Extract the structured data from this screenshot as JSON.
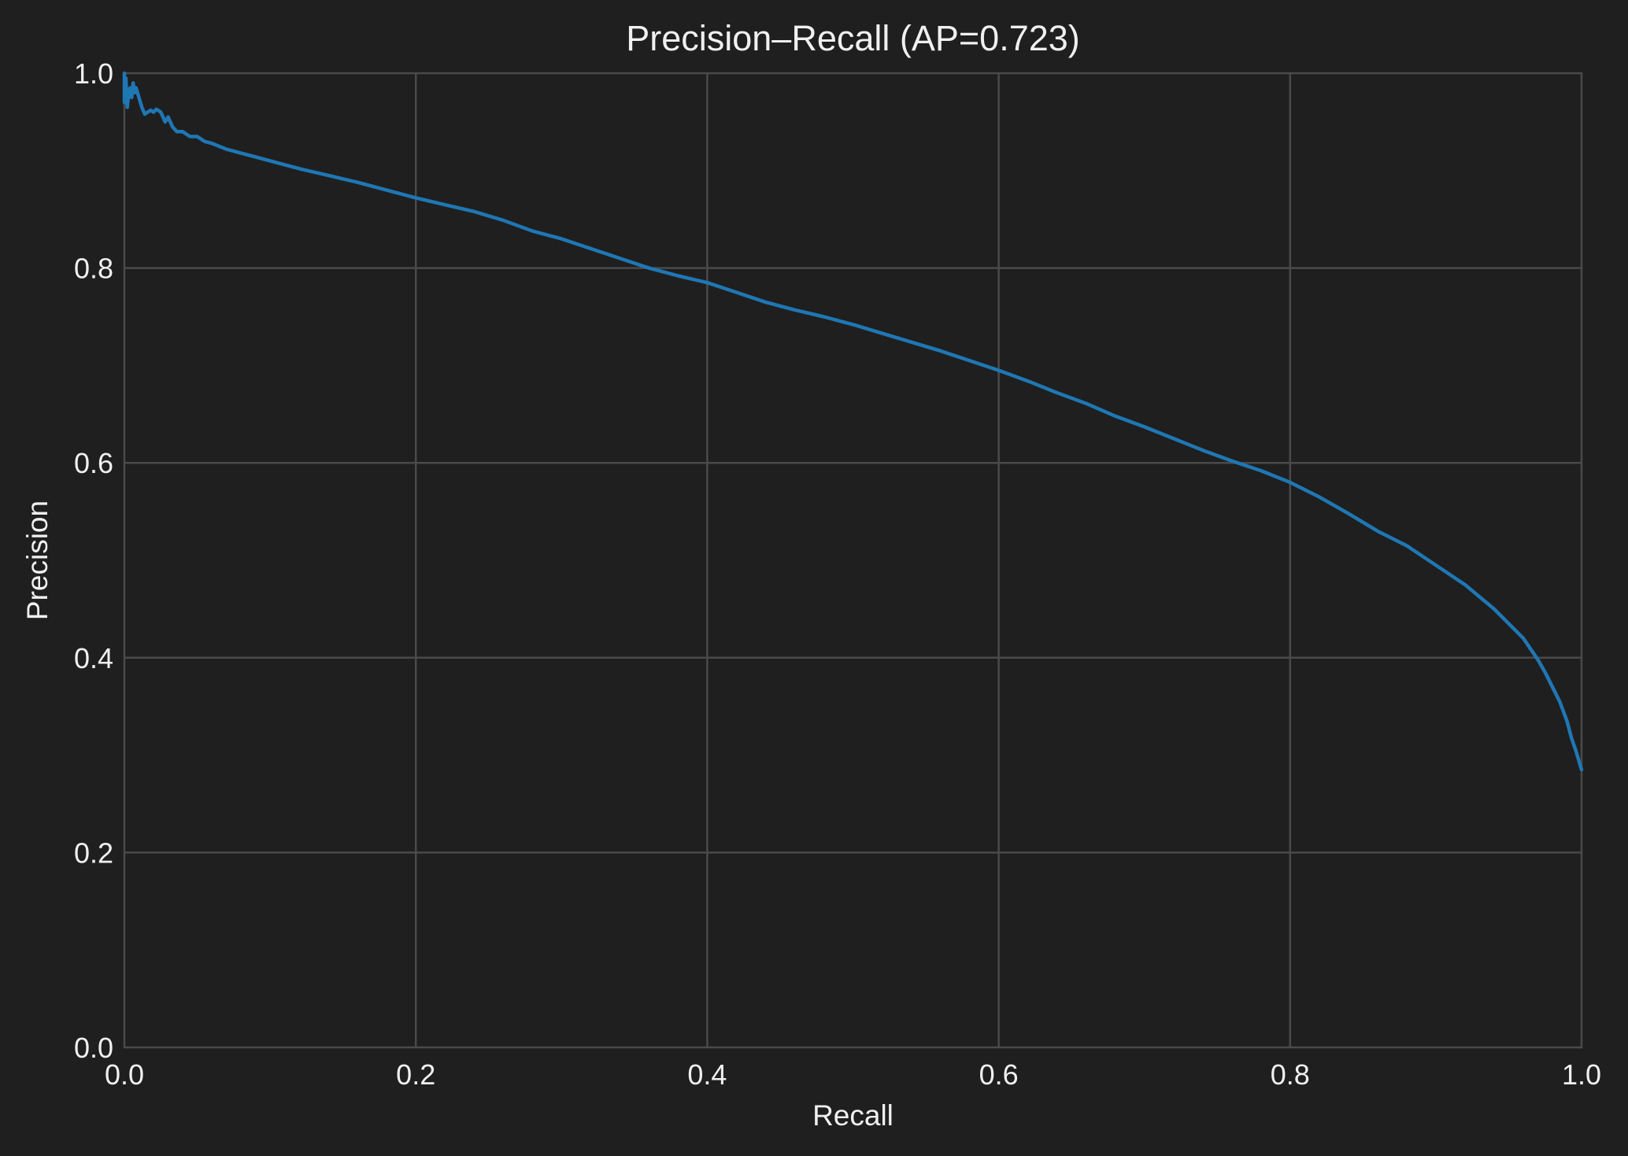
{
  "chart_data": {
    "type": "line",
    "title": "Precision–Recall (AP=0.723)",
    "xlabel": "Recall",
    "ylabel": "Precision",
    "xlim": [
      0.0,
      1.0
    ],
    "ylim": [
      0.0,
      1.0
    ],
    "grid": true,
    "xticks": [
      "0.0",
      "0.2",
      "0.4",
      "0.6",
      "0.8",
      "1.0"
    ],
    "yticks": [
      "0.0",
      "0.2",
      "0.4",
      "0.6",
      "0.8",
      "1.0"
    ],
    "background_color": "#1f1f1f",
    "grid_color": "#4a4a4a",
    "text_color": "#f0f0f0",
    "series": [
      {
        "color": "#1f77b4",
        "x": [
          0.0,
          0.0,
          0.001,
          0.002,
          0.003,
          0.004,
          0.005,
          0.006,
          0.007,
          0.008,
          0.01,
          0.012,
          0.014,
          0.016,
          0.018,
          0.02,
          0.022,
          0.025,
          0.028,
          0.03,
          0.033,
          0.036,
          0.04,
          0.045,
          0.05,
          0.055,
          0.06,
          0.07,
          0.08,
          0.09,
          0.1,
          0.12,
          0.14,
          0.16,
          0.18,
          0.2,
          0.22,
          0.24,
          0.26,
          0.28,
          0.3,
          0.32,
          0.34,
          0.36,
          0.38,
          0.4,
          0.42,
          0.44,
          0.46,
          0.48,
          0.5,
          0.52,
          0.54,
          0.56,
          0.58,
          0.6,
          0.62,
          0.64,
          0.66,
          0.68,
          0.7,
          0.72,
          0.74,
          0.76,
          0.78,
          0.8,
          0.82,
          0.84,
          0.86,
          0.88,
          0.9,
          0.92,
          0.94,
          0.95,
          0.96,
          0.97,
          0.975,
          0.98,
          0.985,
          0.99,
          0.993,
          0.996,
          0.998,
          1.0
        ],
        "y": [
          1.0,
          0.97,
          0.995,
          0.965,
          0.98,
          0.985,
          0.975,
          0.99,
          0.98,
          0.985,
          0.975,
          0.965,
          0.958,
          0.96,
          0.962,
          0.96,
          0.963,
          0.96,
          0.95,
          0.955,
          0.945,
          0.94,
          0.94,
          0.935,
          0.935,
          0.93,
          0.928,
          0.922,
          0.918,
          0.914,
          0.91,
          0.902,
          0.895,
          0.888,
          0.88,
          0.872,
          0.865,
          0.858,
          0.849,
          0.838,
          0.83,
          0.82,
          0.81,
          0.8,
          0.792,
          0.785,
          0.775,
          0.765,
          0.757,
          0.75,
          0.742,
          0.733,
          0.724,
          0.715,
          0.705,
          0.695,
          0.684,
          0.672,
          0.661,
          0.648,
          0.637,
          0.625,
          0.613,
          0.602,
          0.592,
          0.58,
          0.565,
          0.548,
          0.53,
          0.515,
          0.495,
          0.475,
          0.45,
          0.435,
          0.42,
          0.398,
          0.385,
          0.37,
          0.355,
          0.335,
          0.318,
          0.305,
          0.295,
          0.285
        ]
      }
    ]
  }
}
